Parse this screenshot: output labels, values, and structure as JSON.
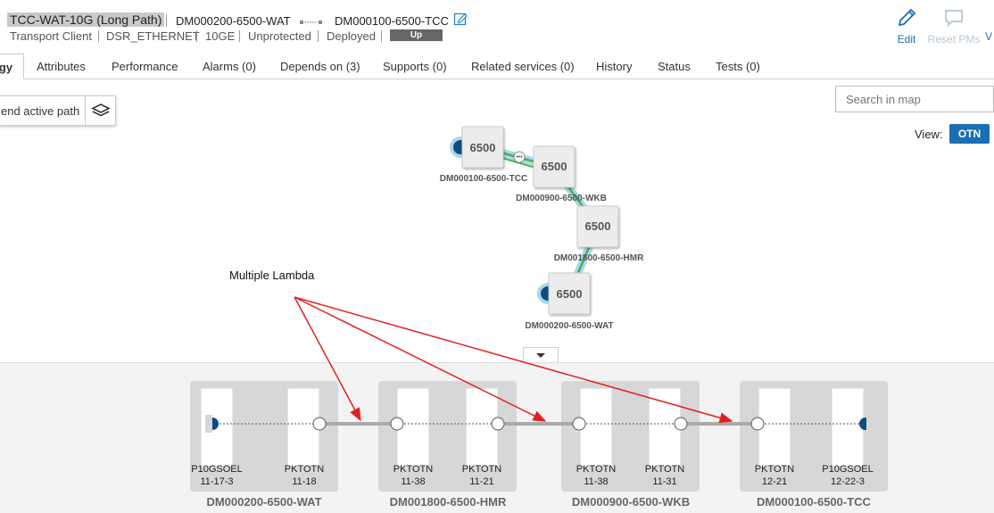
{
  "header": {
    "title": "TCC-WAT-10G (Long Path)",
    "endpoint_a": "DM000200-6500-WAT",
    "endpoint_z": "DM000100-6500-TCC",
    "attributes": [
      "Transport Client",
      "DSR_ETHERNET",
      "10GE",
      "Unprotected",
      "Deployed"
    ],
    "status": "Up",
    "actions": [
      {
        "label": "Edit",
        "icon": "pencil-icon",
        "enabled": true
      },
      {
        "label": "Reset PMs",
        "icon": "comment-icon",
        "enabled": false
      },
      {
        "label": "V",
        "icon": "",
        "enabled": true
      }
    ]
  },
  "tabs": [
    {
      "label": "gy",
      "active": true
    },
    {
      "label": "Attributes"
    },
    {
      "label": "Performance"
    },
    {
      "label": "Alarms (0)"
    },
    {
      "label": "Depends on (3)"
    },
    {
      "label": "Supports (0)"
    },
    {
      "label": "Related services (0)"
    },
    {
      "label": "History"
    },
    {
      "label": "Status"
    },
    {
      "label": "Tests (0)"
    }
  ],
  "map": {
    "legend_label": "end active path",
    "search_placeholder": "Search in map",
    "view_label": "View:",
    "view_mode": "OTN",
    "annotation": "Multiple Lambda",
    "nodes": [
      {
        "label": "6500",
        "name": "DM000100-6500-TCC"
      },
      {
        "label": "6500",
        "name": "DM000900-6500-WKB"
      },
      {
        "label": "6500",
        "name": "DM001800-6500-HMR"
      },
      {
        "label": "6500",
        "name": "DM000200-6500-WAT"
      }
    ]
  },
  "path": {
    "devices": [
      {
        "name": "DM000200-6500-WAT",
        "ports": [
          {
            "type": "P10GSOEL",
            "slot": "11-17-3"
          },
          {
            "type": "PKTOTN",
            "slot": "11-18"
          }
        ]
      },
      {
        "name": "DM001800-6500-HMR",
        "ports": [
          {
            "type": "PKTOTN",
            "slot": "11-38"
          },
          {
            "type": "PKTOTN",
            "slot": "11-21"
          }
        ]
      },
      {
        "name": "DM000900-6500-WKB",
        "ports": [
          {
            "type": "PKTOTN",
            "slot": "11-38"
          },
          {
            "type": "PKTOTN",
            "slot": "11-31"
          }
        ]
      },
      {
        "name": "DM000100-6500-TCC",
        "ports": [
          {
            "type": "PKTOTN",
            "slot": "12-21"
          },
          {
            "type": "P10GSOEL",
            "slot": "12-22-3"
          }
        ]
      }
    ]
  },
  "colors": {
    "accent": "#1a6fb3",
    "status_up": "#666666",
    "arrow": "#e02020",
    "link_green": "#4caf50",
    "link_glow": "#a9d8ee",
    "endpoint": "#0b4f7c"
  }
}
